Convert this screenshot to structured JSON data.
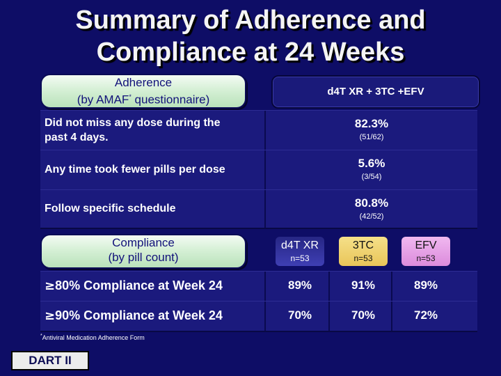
{
  "title": {
    "line1": "Summary of Adherence and",
    "line2": "Compliance at 24 Weeks"
  },
  "adherence_header": {
    "line1": "Adherence",
    "line2_prefix": "(by AMAF",
    "line2_sup": "*",
    "line2_suffix": " questionnaire)"
  },
  "regimen_header": "d4T XR + 3TC +EFV",
  "adherence_rows": [
    {
      "label_line1": "Did not miss any dose during the",
      "label_line2": "past 4 days.",
      "percent": "82.3%",
      "fraction": "(51/62)"
    },
    {
      "label_line1": "Any time took fewer pills per dose",
      "label_line2": "",
      "percent": "5.6%",
      "fraction": "(3/54)"
    },
    {
      "label_line1": "Follow specific schedule",
      "label_line2": "",
      "percent": "80.8%",
      "fraction": "(42/52)"
    }
  ],
  "compliance_header": {
    "line1": "Compliance",
    "line2": "(by pill count)"
  },
  "compliance_columns": [
    {
      "name": "d4T XR",
      "n": "n=53"
    },
    {
      "name": "3TC",
      "n": "n=53"
    },
    {
      "name": "EFV",
      "n": "n=53"
    }
  ],
  "compliance_rows": [
    {
      "symbol": "≥",
      "pct": "80%",
      "text": " Compliance at Week 24",
      "values": [
        "89%",
        "91%",
        "89%"
      ]
    },
    {
      "symbol": "≥",
      "pct": "90%",
      "text": " Compliance at Week 24",
      "values": [
        "70%",
        "70%",
        "72%"
      ]
    }
  ],
  "footnote": {
    "sup": "*",
    "text": "Antiviral Medication Adherence Form"
  },
  "badge": "DART II",
  "colors": {
    "background": "#0e0d66",
    "pill_green": "#d6f0d6",
    "d4t_blue": "#3f3fb4",
    "tc_yellow": "#e9c559",
    "efv_pink": "#dc8bdc"
  }
}
